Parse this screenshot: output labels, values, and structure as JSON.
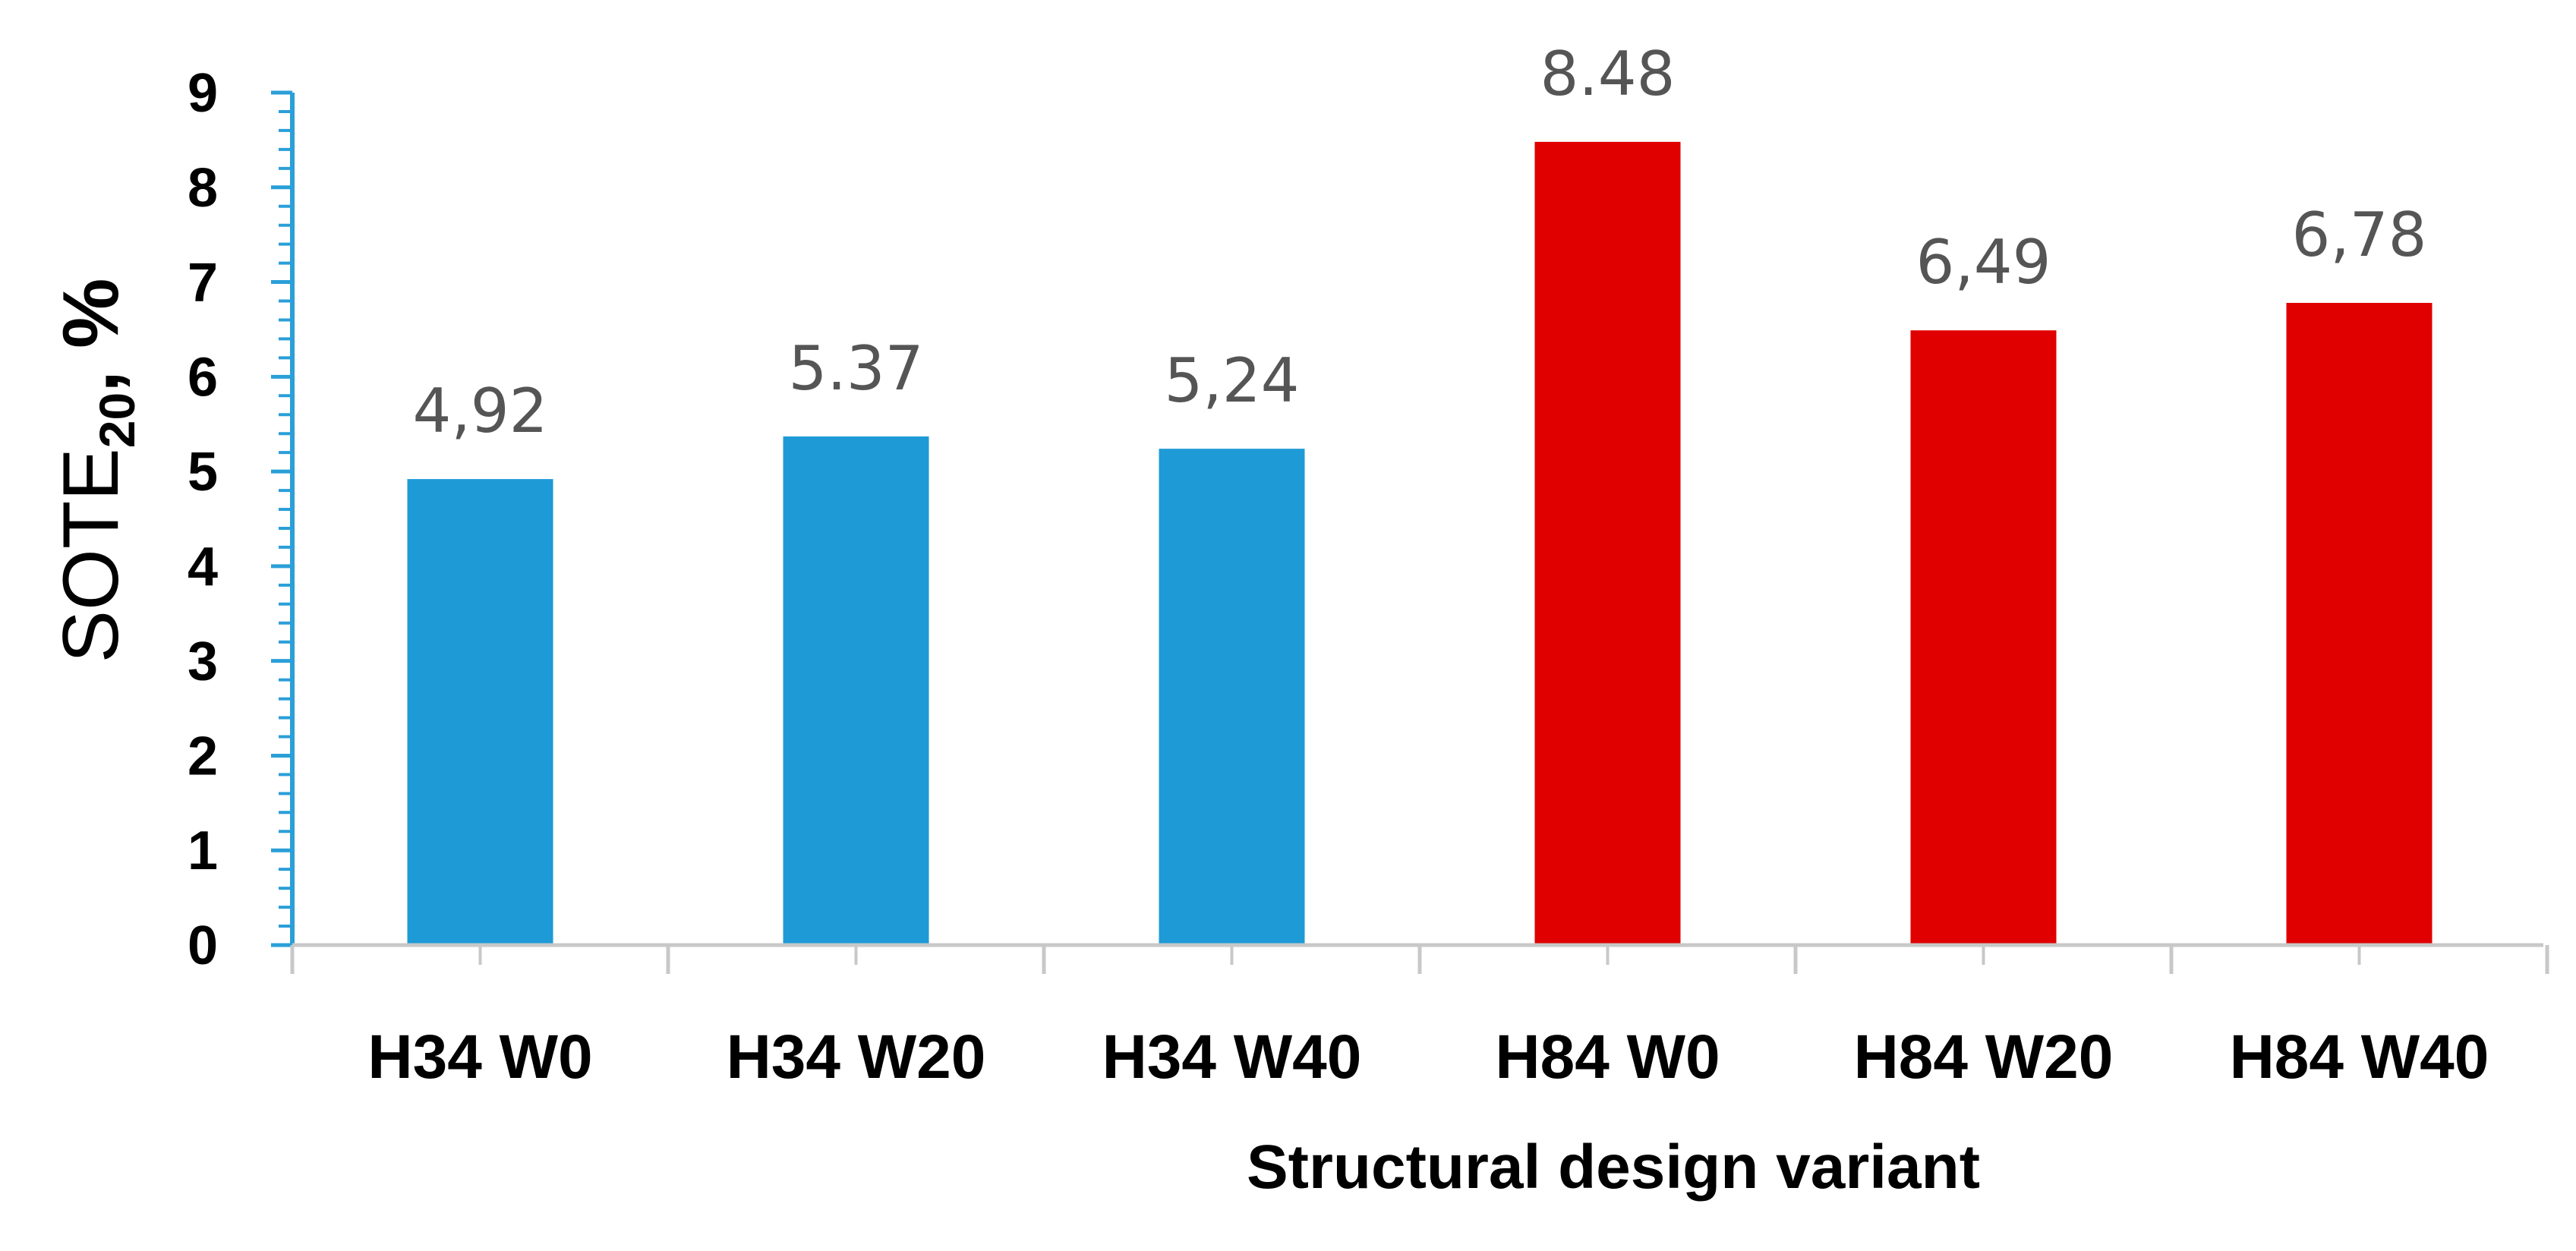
{
  "chart_data": {
    "type": "bar",
    "categories": [
      "H34 W0",
      "H34 W20",
      "H34 W40",
      "H84 W0",
      "H84 W20",
      "H84 W40"
    ],
    "values": [
      4.92,
      5.37,
      5.24,
      8.48,
      6.49,
      6.78
    ],
    "data_labels": [
      "4,92",
      "5.37",
      "5,24",
      "8.48",
      "6,49",
      "6,78"
    ],
    "bar_colors": [
      "#1e9ad6",
      "#1e9ad6",
      "#1e9ad6",
      "#e00000",
      "#e00000",
      "#e00000"
    ],
    "xlabel": "Structural design variant",
    "ylabel": {
      "main": "SOTE",
      "subscript": "20",
      "unit": ", %"
    },
    "ylim": [
      0,
      9
    ],
    "yticks": [
      "0",
      "1",
      "2",
      "3",
      "4",
      "5",
      "6",
      "7",
      "8",
      "9"
    ],
    "grid": false,
    "legend": "none",
    "axis_color": "#2a9fd8",
    "baseline_color": "#c8c8c8"
  }
}
